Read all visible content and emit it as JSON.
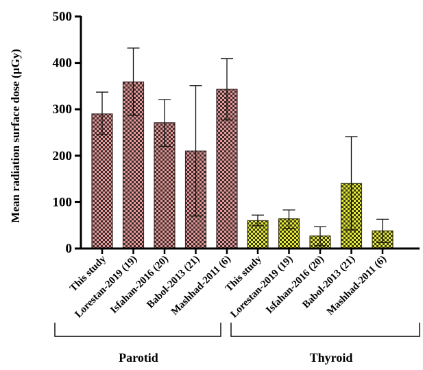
{
  "chart_data": {
    "type": "bar",
    "ylabel": "Mean radiation surface dose  (µGy)",
    "ylim": [
      0,
      500
    ],
    "yticks": [
      0,
      100,
      200,
      300,
      400,
      500
    ],
    "groups": [
      {
        "name": "Parotid",
        "color": "#e79a9a",
        "bars": [
          {
            "label": "This study",
            "value": 290,
            "err_low": 245,
            "err_high": 337
          },
          {
            "label": "Lorestan-2019 (19)",
            "value": 359,
            "err_low": 287,
            "err_high": 432
          },
          {
            "label": "Isfahan-2016 (20)",
            "value": 271,
            "err_low": 220,
            "err_high": 321
          },
          {
            "label": "Babol-2013 (21)",
            "value": 210,
            "err_low": 70,
            "err_high": 351
          },
          {
            "label": "Mashhad-2011 (6)",
            "value": 343,
            "err_low": 277,
            "err_high": 409
          }
        ]
      },
      {
        "name": "Thyroid",
        "color": "#e6ea3c",
        "bars": [
          {
            "label": "This study",
            "value": 60,
            "err_low": 49,
            "err_high": 72
          },
          {
            "label": "Lorestan-2019 (19)",
            "value": 64,
            "err_low": 43,
            "err_high": 83
          },
          {
            "label": "Isfahan-2016 (20)",
            "value": 27,
            "err_low": 6,
            "err_high": 47
          },
          {
            "label": "Babol-2013 (21)",
            "value": 140,
            "err_low": 40,
            "err_high": 241
          },
          {
            "label": "Mashhad-2011 (6)",
            "value": 38,
            "err_low": 13,
            "err_high": 63
          }
        ]
      }
    ]
  }
}
